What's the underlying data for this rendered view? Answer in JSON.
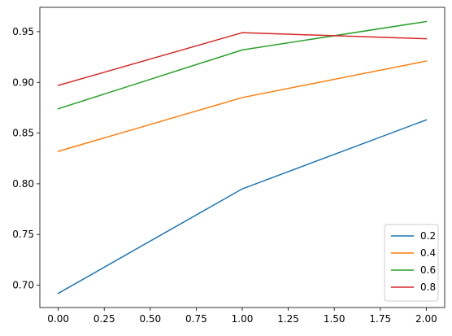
{
  "chart_data": {
    "type": "line",
    "title": "",
    "xlabel": "",
    "ylabel": "",
    "x": [
      0,
      1,
      2
    ],
    "xlim": [
      -0.1,
      2.1
    ],
    "ylim": [
      0.678,
      0.974
    ],
    "xticks": [
      "0.00",
      "0.25",
      "0.50",
      "0.75",
      "1.00",
      "1.25",
      "1.50",
      "1.75",
      "2.00"
    ],
    "yticks": [
      "0.70",
      "0.75",
      "0.80",
      "0.85",
      "0.90",
      "0.95"
    ],
    "grid": false,
    "legend_position": "lower-right",
    "series": [
      {
        "name": "0.2",
        "color": "#1f77b4",
        "values": [
          0.692,
          0.795,
          0.863
        ]
      },
      {
        "name": "0.4",
        "color": "#ff7f0e",
        "values": [
          0.832,
          0.885,
          0.921
        ]
      },
      {
        "name": "0.6",
        "color": "#2ca02c",
        "values": [
          0.874,
          0.932,
          0.96
        ]
      },
      {
        "name": "0.8",
        "color": "#d62728",
        "values": [
          0.897,
          0.949,
          0.943
        ]
      }
    ]
  }
}
